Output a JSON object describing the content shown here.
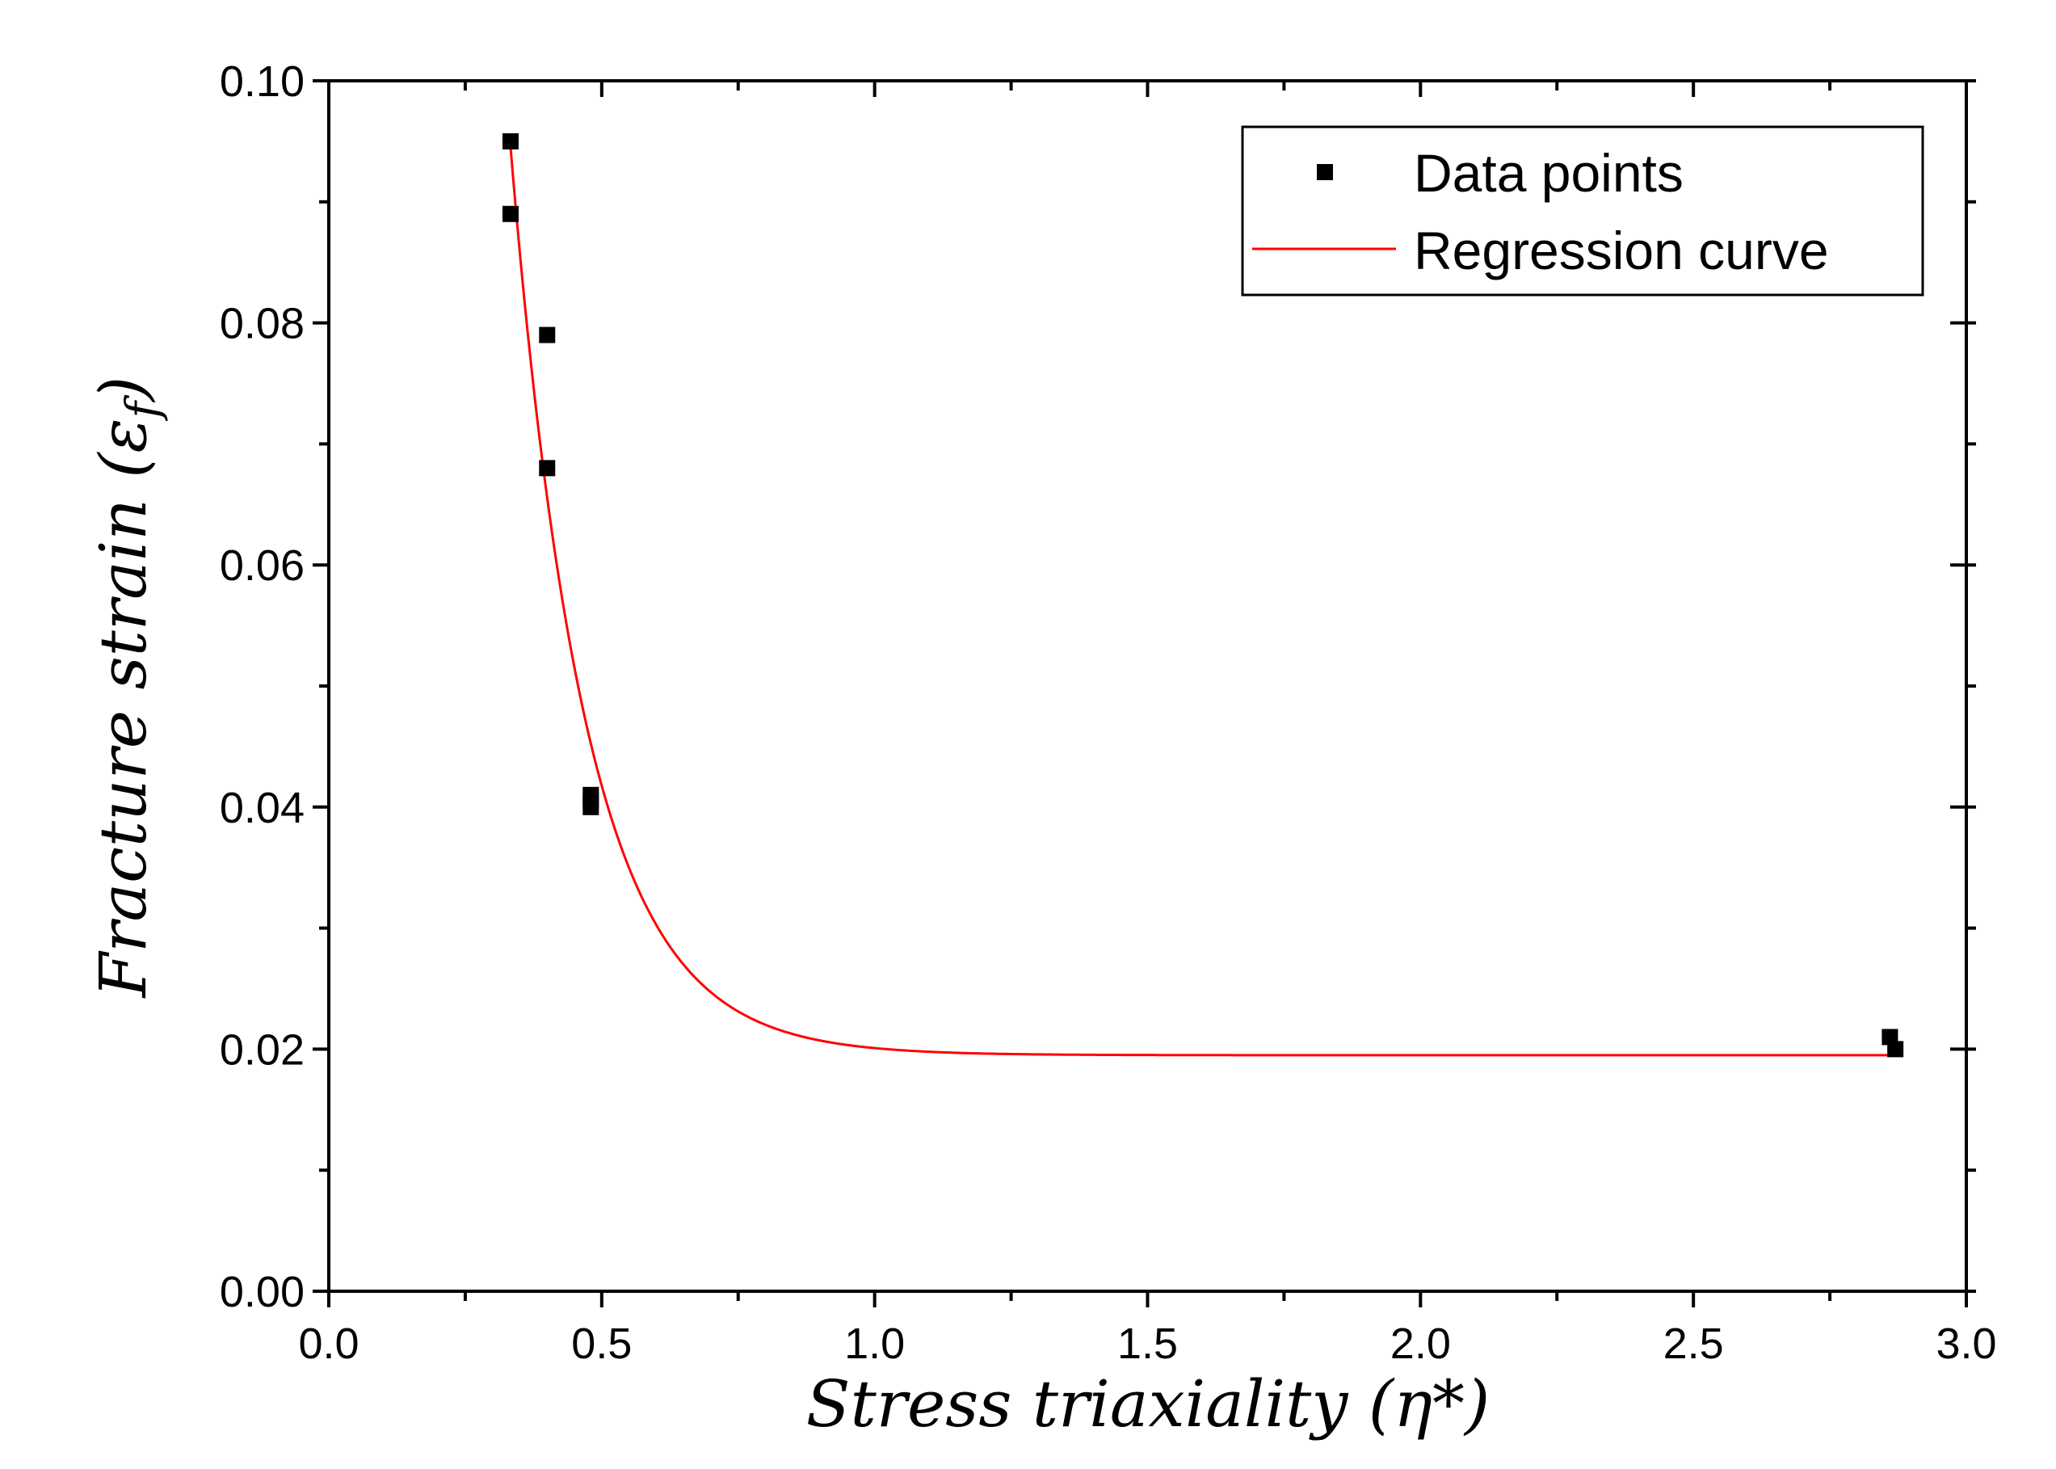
{
  "chart_data": {
    "type": "scatter",
    "title": "",
    "xlabel": "Stress triaxiality (η*)",
    "ylabel": "Fracture strain (ε",
    "ylabel_sub": "f",
    "ylabel_close": ")",
    "xlim": [
      0.0,
      3.0
    ],
    "ylim": [
      0.0,
      0.1
    ],
    "x_ticks": [
      0.0,
      0.5,
      1.0,
      1.5,
      2.0,
      2.5,
      3.0
    ],
    "x_tick_labels": [
      "0.0",
      "0.5",
      "1.0",
      "1.5",
      "2.0",
      "2.5",
      "3.0"
    ],
    "y_ticks": [
      0.0,
      0.02,
      0.04,
      0.06,
      0.08,
      0.1
    ],
    "y_tick_labels": [
      "0.00",
      "0.02",
      "0.04",
      "0.06",
      "0.08",
      "0.10"
    ],
    "x_minor_ticks": [
      0.25,
      0.75,
      1.25,
      1.75,
      2.25,
      2.75
    ],
    "y_minor_ticks": [
      0.01,
      0.03,
      0.05,
      0.07,
      0.09
    ],
    "grid": false,
    "legend_position": "top-right",
    "series": [
      {
        "name": "Data points",
        "kind": "scatter",
        "marker": "square",
        "color": "#000000",
        "points": [
          {
            "x": 0.333,
            "y": 0.095
          },
          {
            "x": 0.333,
            "y": 0.089
          },
          {
            "x": 0.4,
            "y": 0.079
          },
          {
            "x": 0.4,
            "y": 0.068
          },
          {
            "x": 0.48,
            "y": 0.041
          },
          {
            "x": 0.48,
            "y": 0.0405
          },
          {
            "x": 0.48,
            "y": 0.04
          },
          {
            "x": 2.86,
            "y": 0.021
          },
          {
            "x": 2.87,
            "y": 0.02
          }
        ]
      },
      {
        "name": "Regression curve",
        "kind": "line",
        "color": "#ff0000",
        "model": "y = c + a*exp(-(x - x0)/t)",
        "params": {
          "c": 0.0195,
          "a": 0.075,
          "x0": 0.333,
          "t": 0.1375
        },
        "x_range": [
          0.333,
          2.87
        ]
      }
    ]
  }
}
